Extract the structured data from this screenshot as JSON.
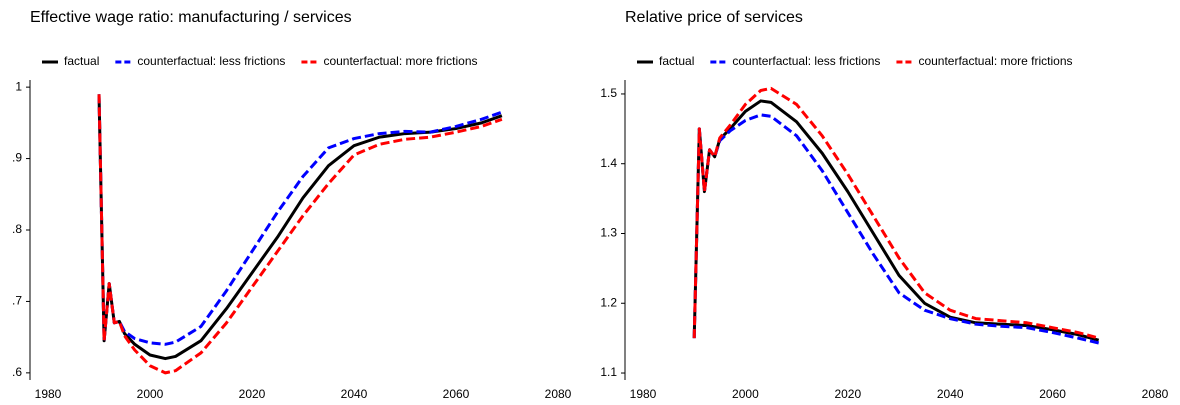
{
  "chart_data": [
    {
      "type": "line",
      "title": "Effective wage ratio: manufacturing / services",
      "x": [
        1990,
        1991,
        1992,
        1993,
        1994,
        1995,
        1997,
        2000,
        2003,
        2005,
        2010,
        2015,
        2020,
        2025,
        2030,
        2035,
        2040,
        2045,
        2050,
        2055,
        2060,
        2065,
        2069
      ],
      "series": [
        {
          "name": "factual",
          "color": "#000000",
          "linestyle": "solid",
          "values": [
            0.99,
            0.645,
            0.725,
            0.67,
            0.672,
            0.655,
            0.64,
            0.625,
            0.62,
            0.623,
            0.645,
            0.69,
            0.74,
            0.79,
            0.845,
            0.89,
            0.918,
            0.93,
            0.935,
            0.937,
            0.942,
            0.95,
            0.96
          ]
        },
        {
          "name": "counterfactual: less frictions",
          "color": "#0000ff",
          "linestyle": "dashed",
          "values": [
            0.99,
            0.645,
            0.725,
            0.67,
            0.672,
            0.658,
            0.648,
            0.642,
            0.64,
            0.643,
            0.665,
            0.715,
            0.77,
            0.825,
            0.875,
            0.915,
            0.928,
            0.935,
            0.938,
            0.937,
            0.945,
            0.955,
            0.965
          ]
        },
        {
          "name": "counterfactual: more frictions",
          "color": "#ff0000",
          "linestyle": "dashed",
          "values": [
            0.99,
            0.645,
            0.725,
            0.67,
            0.672,
            0.652,
            0.632,
            0.61,
            0.6,
            0.603,
            0.628,
            0.67,
            0.72,
            0.77,
            0.82,
            0.865,
            0.905,
            0.92,
            0.927,
            0.93,
            0.937,
            0.945,
            0.955
          ]
        }
      ],
      "xlim": [
        1980,
        2080
      ],
      "xticks": [
        1980,
        2000,
        2020,
        2040,
        2060,
        2080
      ],
      "ylim": [
        0.59,
        1.01
      ],
      "yticks": [
        {
          "value": 0.6,
          "label": ".6"
        },
        {
          "value": 0.7,
          "label": ".7"
        },
        {
          "value": 0.8,
          "label": ".8"
        },
        {
          "value": 0.9,
          "label": ".9"
        },
        1
      ],
      "legend": "top"
    },
    {
      "type": "line",
      "title": "Relative price of services",
      "x": [
        1990,
        1991,
        1992,
        1993,
        1994,
        1995,
        1997,
        2000,
        2003,
        2005,
        2010,
        2015,
        2020,
        2025,
        2030,
        2035,
        2040,
        2045,
        2050,
        2055,
        2060,
        2065,
        2069
      ],
      "series": [
        {
          "name": "factual",
          "color": "#000000",
          "linestyle": "solid",
          "values": [
            1.15,
            1.45,
            1.36,
            1.42,
            1.41,
            1.435,
            1.45,
            1.475,
            1.49,
            1.488,
            1.46,
            1.415,
            1.36,
            1.3,
            1.24,
            1.2,
            1.18,
            1.172,
            1.17,
            1.168,
            1.162,
            1.155,
            1.147
          ]
        },
        {
          "name": "counterfactual: less frictions",
          "color": "#0000ff",
          "linestyle": "dashed",
          "values": [
            1.15,
            1.45,
            1.36,
            1.42,
            1.41,
            1.433,
            1.447,
            1.462,
            1.47,
            1.468,
            1.44,
            1.39,
            1.33,
            1.27,
            1.215,
            1.19,
            1.178,
            1.17,
            1.167,
            1.165,
            1.158,
            1.15,
            1.143
          ]
        },
        {
          "name": "counterfactual: more frictions",
          "color": "#ff0000",
          "linestyle": "dashed",
          "values": [
            1.15,
            1.45,
            1.36,
            1.42,
            1.41,
            1.437,
            1.455,
            1.485,
            1.505,
            1.508,
            1.485,
            1.44,
            1.385,
            1.325,
            1.265,
            1.215,
            1.19,
            1.178,
            1.175,
            1.172,
            1.165,
            1.158,
            1.15
          ]
        }
      ],
      "xlim": [
        1980,
        2080
      ],
      "xticks": [
        1980,
        2000,
        2020,
        2040,
        2060,
        2080
      ],
      "ylim": [
        1.09,
        1.52
      ],
      "yticks": [
        1.1,
        1.2,
        1.3,
        1.4,
        1.5
      ],
      "legend": "top"
    }
  ]
}
